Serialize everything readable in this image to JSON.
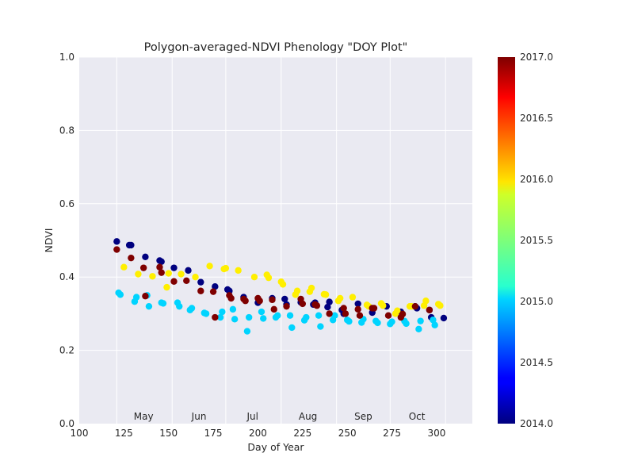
{
  "chart_data": {
    "type": "scatter",
    "title": "Polygon-averaged-NDVI Phenology \"DOY Plot\"",
    "xlabel": "Day of Year",
    "ylabel": "NDVI",
    "xlim": [
      100,
      320
    ],
    "ylim": [
      0.0,
      1.0
    ],
    "xticks": [
      100,
      125,
      150,
      175,
      200,
      225,
      250,
      275,
      300
    ],
    "yticks": [
      0.0,
      0.2,
      0.4,
      0.6,
      0.8,
      1.0
    ],
    "ytick_labels": [
      "0.0",
      "0.2",
      "0.4",
      "0.6",
      "0.8",
      "1.0"
    ],
    "x_gridlines": [
      121,
      152,
      182,
      213,
      244,
      274,
      305
    ],
    "month_labels": [
      {
        "label": "May",
        "x": 136
      },
      {
        "label": "Jun",
        "x": 167
      },
      {
        "label": "Jul",
        "x": 197
      },
      {
        "label": "Aug",
        "x": 228
      },
      {
        "label": "Sep",
        "x": 259
      },
      {
        "label": "Oct",
        "x": 289
      }
    ],
    "grid": true,
    "colorbar": {
      "colormap": "jet",
      "min": 2014.0,
      "max": 2017.0,
      "ticks": [
        2014.0,
        2014.5,
        2015.0,
        2015.5,
        2016.0,
        2016.5,
        2017.0
      ],
      "tick_labels": [
        "2014.0",
        "2014.5",
        "2015.0",
        "2015.5",
        "2016.0",
        "2016.5",
        "2017.0"
      ]
    },
    "series": [
      {
        "year": 2014,
        "color": "#00007f",
        "points": [
          [
            121,
            0.497
          ],
          [
            128,
            0.487
          ],
          [
            129,
            0.487
          ],
          [
            137,
            0.455
          ],
          [
            145,
            0.445
          ],
          [
            146,
            0.442
          ],
          [
            153,
            0.425
          ],
          [
            161,
            0.418
          ],
          [
            168,
            0.386
          ],
          [
            176,
            0.374
          ],
          [
            183,
            0.366
          ],
          [
            184,
            0.362
          ],
          [
            192,
            0.345
          ],
          [
            200,
            0.33
          ],
          [
            208,
            0.342
          ],
          [
            215,
            0.34
          ],
          [
            216,
            0.325
          ],
          [
            224,
            0.331
          ],
          [
            231,
            0.325
          ],
          [
            232,
            0.33
          ],
          [
            239,
            0.318
          ],
          [
            240,
            0.332
          ],
          [
            247,
            0.31
          ],
          [
            248,
            0.3
          ],
          [
            256,
            0.327
          ],
          [
            264,
            0.303
          ],
          [
            272,
            0.32
          ],
          [
            280,
            0.305
          ],
          [
            288,
            0.32
          ],
          [
            289,
            0.315
          ],
          [
            296,
            0.31
          ],
          [
            297,
            0.29
          ],
          [
            304,
            0.288
          ]
        ]
      },
      {
        "year": 2015,
        "color": "#00d4ff",
        "points": [
          [
            122,
            0.357
          ],
          [
            123,
            0.352
          ],
          [
            131,
            0.333
          ],
          [
            132,
            0.345
          ],
          [
            138,
            0.35
          ],
          [
            139,
            0.32
          ],
          [
            146,
            0.33
          ],
          [
            147,
            0.328
          ],
          [
            155,
            0.33
          ],
          [
            156,
            0.32
          ],
          [
            162,
            0.31
          ],
          [
            163,
            0.315
          ],
          [
            170,
            0.302
          ],
          [
            171,
            0.3
          ],
          [
            179,
            0.29
          ],
          [
            180,
            0.305
          ],
          [
            186,
            0.312
          ],
          [
            187,
            0.285
          ],
          [
            194,
            0.252
          ],
          [
            195,
            0.29
          ],
          [
            202,
            0.305
          ],
          [
            203,
            0.287
          ],
          [
            210,
            0.29
          ],
          [
            211,
            0.295
          ],
          [
            218,
            0.295
          ],
          [
            219,
            0.262
          ],
          [
            226,
            0.282
          ],
          [
            227,
            0.29
          ],
          [
            234,
            0.295
          ],
          [
            235,
            0.265
          ],
          [
            242,
            0.283
          ],
          [
            243,
            0.295
          ],
          [
            250,
            0.283
          ],
          [
            251,
            0.279
          ],
          [
            258,
            0.276
          ],
          [
            259,
            0.285
          ],
          [
            266,
            0.28
          ],
          [
            267,
            0.275
          ],
          [
            274,
            0.272
          ],
          [
            275,
            0.278
          ],
          [
            282,
            0.28
          ],
          [
            283,
            0.273
          ],
          [
            290,
            0.258
          ],
          [
            291,
            0.28
          ],
          [
            298,
            0.283
          ],
          [
            299,
            0.269
          ]
        ]
      },
      {
        "year": 2016,
        "color": "#ffef00",
        "points": [
          [
            125,
            0.427
          ],
          [
            133,
            0.408
          ],
          [
            141,
            0.402
          ],
          [
            149,
            0.372
          ],
          [
            150,
            0.41
          ],
          [
            157,
            0.408
          ],
          [
            165,
            0.4
          ],
          [
            173,
            0.43
          ],
          [
            181,
            0.422
          ],
          [
            182,
            0.424
          ],
          [
            189,
            0.418
          ],
          [
            198,
            0.4
          ],
          [
            205,
            0.406
          ],
          [
            206,
            0.398
          ],
          [
            213,
            0.387
          ],
          [
            214,
            0.38
          ],
          [
            221,
            0.352
          ],
          [
            222,
            0.362
          ],
          [
            229,
            0.36
          ],
          [
            230,
            0.37
          ],
          [
            237,
            0.353
          ],
          [
            238,
            0.352
          ],
          [
            245,
            0.335
          ],
          [
            246,
            0.342
          ],
          [
            253,
            0.345
          ],
          [
            261,
            0.324
          ],
          [
            262,
            0.32
          ],
          [
            269,
            0.328
          ],
          [
            270,
            0.322
          ],
          [
            277,
            0.3
          ],
          [
            278,
            0.308
          ],
          [
            285,
            0.32
          ],
          [
            286,
            0.32
          ],
          [
            293,
            0.322
          ],
          [
            294,
            0.335
          ],
          [
            301,
            0.326
          ],
          [
            302,
            0.322
          ]
        ]
      },
      {
        "year": 2017,
        "color": "#7f0000",
        "points": [
          [
            121,
            0.475
          ],
          [
            129,
            0.452
          ],
          [
            136,
            0.425
          ],
          [
            137,
            0.348
          ],
          [
            145,
            0.427
          ],
          [
            146,
            0.412
          ],
          [
            153,
            0.388
          ],
          [
            160,
            0.39
          ],
          [
            168,
            0.362
          ],
          [
            175,
            0.36
          ],
          [
            176,
            0.29
          ],
          [
            184,
            0.35
          ],
          [
            185,
            0.342
          ],
          [
            192,
            0.34
          ],
          [
            193,
            0.335
          ],
          [
            200,
            0.342
          ],
          [
            201,
            0.335
          ],
          [
            208,
            0.338
          ],
          [
            209,
            0.312
          ],
          [
            216,
            0.32
          ],
          [
            224,
            0.34
          ],
          [
            225,
            0.327
          ],
          [
            232,
            0.325
          ],
          [
            233,
            0.322
          ],
          [
            240,
            0.3
          ],
          [
            248,
            0.315
          ],
          [
            249,
            0.3
          ],
          [
            256,
            0.312
          ],
          [
            257,
            0.295
          ],
          [
            264,
            0.315
          ],
          [
            265,
            0.315
          ],
          [
            273,
            0.295
          ],
          [
            280,
            0.29
          ],
          [
            281,
            0.299
          ],
          [
            288,
            0.32
          ],
          [
            296,
            0.31
          ]
        ]
      }
    ]
  }
}
